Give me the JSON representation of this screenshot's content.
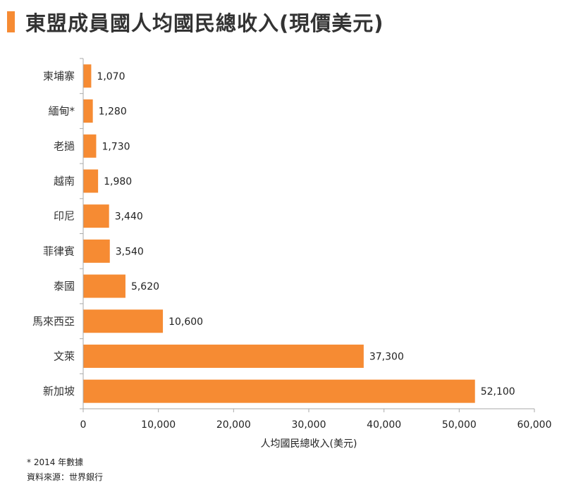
{
  "header": {
    "title": "東盟成員國人均國民總收入(現價美元)"
  },
  "colors": {
    "accent": "#f68b33",
    "bar": "#f68b33",
    "axis": "#aaaaaa"
  },
  "chart_data": {
    "type": "bar",
    "orientation": "horizontal",
    "title": "東盟成員國人均國民總收入(現價美元)",
    "xlabel": "人均國民總收入(美元)",
    "ylabel": "",
    "xlim": [
      0,
      60000
    ],
    "xticks": [
      0,
      10000,
      20000,
      30000,
      40000,
      50000,
      60000
    ],
    "xtick_labels": [
      "0",
      "10,000",
      "20,000",
      "30,000",
      "40,000",
      "50,000",
      "60,000"
    ],
    "grid": false,
    "categories": [
      "柬埔寨",
      "緬甸*",
      "老撾",
      "越南",
      "印尼",
      "菲律賓",
      "泰國",
      "馬來西亞",
      "文萊",
      "新加坡"
    ],
    "values": [
      1070,
      1280,
      1730,
      1980,
      3440,
      3540,
      5620,
      10600,
      37300,
      52100
    ],
    "value_labels": [
      "1,070",
      "1,280",
      "1,730",
      "1,980",
      "3,440",
      "3,540",
      "5,620",
      "10,600",
      "37,300",
      "52,100"
    ]
  },
  "footnotes": {
    "note": "* 2014 年數據",
    "source": "資料來源：世界銀行"
  }
}
